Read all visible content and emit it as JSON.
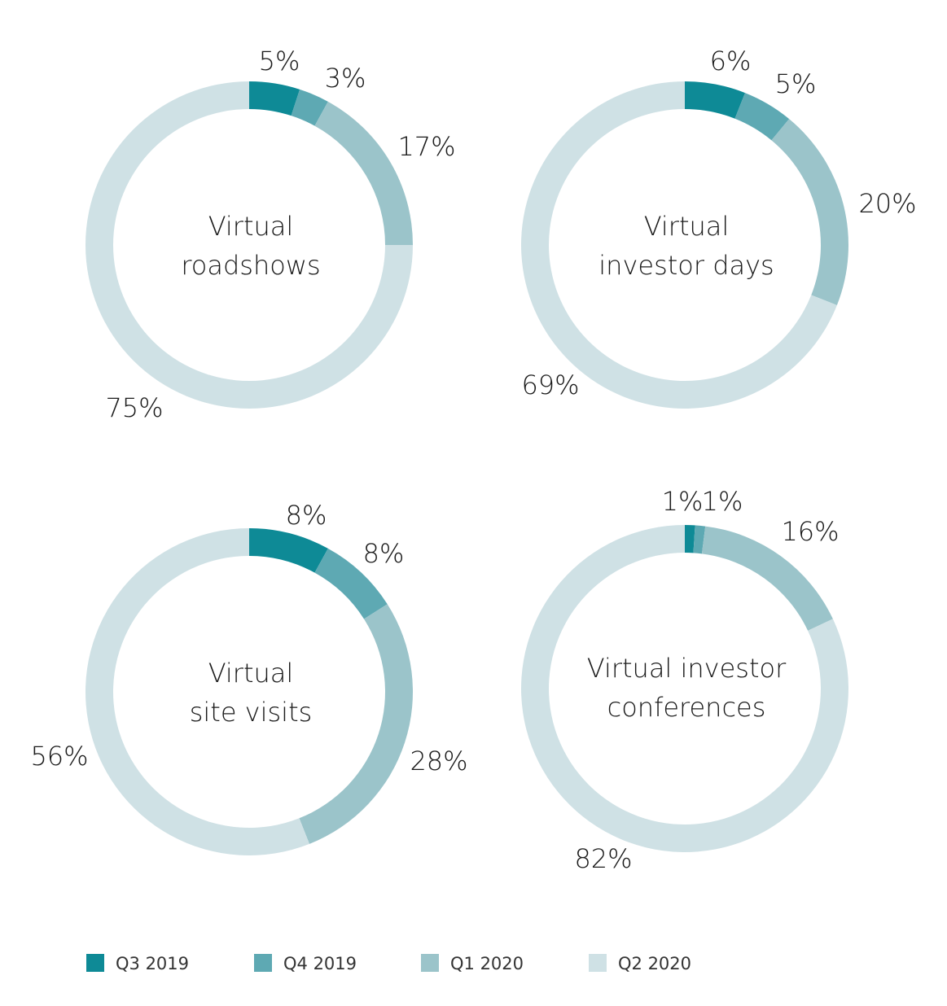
{
  "chart_data": [
    {
      "type": "pie",
      "title": "Virtual roadshows",
      "title_lines": [
        "Virtual",
        "roadshows"
      ],
      "categories": [
        "Q3 2019",
        "Q4 2019",
        "Q1 2020",
        "Q2 2020"
      ],
      "values": [
        5,
        3,
        17,
        75
      ],
      "labels": [
        "5%",
        "3%",
        "17%",
        "75%"
      ]
    },
    {
      "type": "pie",
      "title": "Virtual investor days",
      "title_lines": [
        "Virtual",
        "investor days"
      ],
      "categories": [
        "Q3 2019",
        "Q4 2019",
        "Q1 2020",
        "Q2 2020"
      ],
      "values": [
        6,
        5,
        20,
        69
      ],
      "labels": [
        "6%",
        "5%",
        "20%",
        "69%"
      ]
    },
    {
      "type": "pie",
      "title": "Virtual site visits",
      "title_lines": [
        "Virtual",
        "site visits"
      ],
      "categories": [
        "Q3 2019",
        "Q4 2019",
        "Q1 2020",
        "Q2 2020"
      ],
      "values": [
        8,
        8,
        28,
        56
      ],
      "labels": [
        "8%",
        "8%",
        "28%",
        "56%"
      ]
    },
    {
      "type": "pie",
      "title": "Virtual investor conferences",
      "title_lines": [
        "Virtual investor",
        "conferences"
      ],
      "categories": [
        "Q3 2019",
        "Q4 2019",
        "Q1 2020",
        "Q2 2020"
      ],
      "values": [
        1,
        1,
        16,
        82
      ],
      "labels": [
        "1%",
        "1%",
        "16%",
        "82%"
      ]
    }
  ],
  "legend": [
    {
      "label": "Q3 2019",
      "color": "#0e8a96"
    },
    {
      "label": "Q4 2019",
      "color": "#5ea9b3"
    },
    {
      "label": "Q1 2020",
      "color": "#9bc4ca"
    },
    {
      "label": "Q2 2020",
      "color": "#cfe1e5"
    }
  ]
}
